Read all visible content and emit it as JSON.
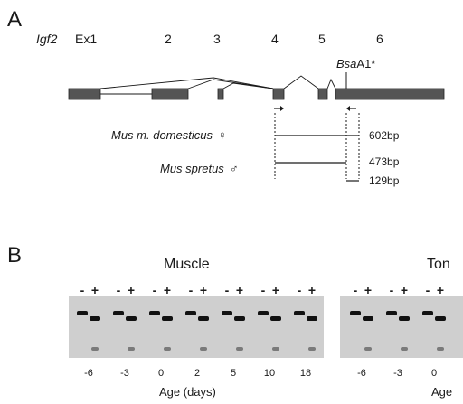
{
  "figure": {
    "panel_a": {
      "letter": "A",
      "gene_label": "Igf2",
      "exons": [
        "Ex1",
        "2",
        "3",
        "4",
        "5",
        "6"
      ],
      "restriction_site": {
        "name": "Bsa",
        "suffix": "A1*"
      },
      "products": [
        {
          "species": "Mus m. domesticus",
          "sex_symbol": "♀",
          "sizes": [
            "602bp"
          ]
        },
        {
          "species": "Mus spretus",
          "sex_symbol": "♂",
          "sizes": [
            "473bp",
            "129bp"
          ]
        }
      ]
    },
    "panel_b": {
      "letter": "B",
      "gels": [
        {
          "tissue": "Muscle",
          "lane_signs": [
            "-",
            "+"
          ],
          "ages": [
            "-6",
            "-3",
            "0",
            "2",
            "5",
            "10",
            "18"
          ],
          "axis_label": "Age (days)"
        },
        {
          "tissue": "Ton",
          "lane_signs": [
            "-",
            "+"
          ],
          "ages": [
            "-6",
            "-3",
            "0"
          ],
          "axis_label": "Age"
        }
      ]
    }
  }
}
